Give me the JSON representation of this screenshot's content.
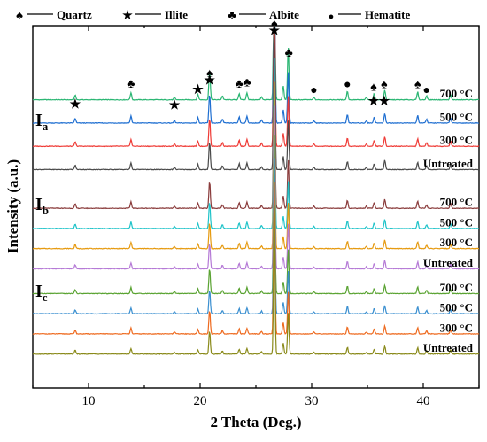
{
  "chart_data": {
    "type": "line",
    "xlabel": "2 Theta (Deg.)",
    "ylabel": "Intensity (a.u.)",
    "xlim": [
      5,
      45
    ],
    "xticks": [
      10,
      20,
      30,
      40
    ],
    "y_ticks_shown": false,
    "legend": {
      "placement": "top",
      "entries": [
        {
          "name": "Quartz",
          "symbol": "♠"
        },
        {
          "name": "Illite",
          "symbol": "★"
        },
        {
          "name": "Albite",
          "symbol": "♣"
        },
        {
          "name": "Hematite",
          "symbol": "●"
        }
      ]
    },
    "groups": [
      {
        "main": "I",
        "sub": "a"
      },
      {
        "main": "I",
        "sub": "b"
      },
      {
        "main": "I",
        "sub": "c"
      }
    ],
    "series": [
      {
        "name": "700 °C",
        "group": 0,
        "color": "#2bb673",
        "offset": 8.2
      },
      {
        "name": "500 °C",
        "group": 0,
        "color": "#1f6fd1",
        "offset": 7.45
      },
      {
        "name": "300 °C",
        "group": 0,
        "color": "#ef3b36",
        "offset": 6.7
      },
      {
        "name": "Untreated",
        "group": 0,
        "color": "#4a4a4a",
        "offset": 5.95
      },
      {
        "name": "700 °C",
        "group": 1,
        "color": "#8a3b3b",
        "offset": 4.7
      },
      {
        "name": "500 °C",
        "group": 1,
        "color": "#1fc3c9",
        "offset": 4.05
      },
      {
        "name": "300 °C",
        "group": 1,
        "color": "#e69a10",
        "offset": 3.4
      },
      {
        "name": "Untreated",
        "group": 1,
        "color": "#b57ad6",
        "offset": 2.75
      },
      {
        "name": "700 °C",
        "group": 2,
        "color": "#5aa332",
        "offset": 1.95
      },
      {
        "name": "500 °C",
        "group": 2,
        "color": "#3a8fd0",
        "offset": 1.3
      },
      {
        "name": "300 °C",
        "group": 2,
        "color": "#ee6a1f",
        "offset": 0.65
      },
      {
        "name": "Untreated",
        "group": 2,
        "color": "#8a8a1a",
        "offset": 0.0
      }
    ],
    "peaks": [
      {
        "x": 8.8,
        "h": 0.12
      },
      {
        "x": 13.8,
        "h": 0.18
      },
      {
        "x": 17.7,
        "h": 0.06
      },
      {
        "x": 19.8,
        "h": 0.14
      },
      {
        "x": 20.85,
        "h": 0.75
      },
      {
        "x": 22.0,
        "h": 0.1
      },
      {
        "x": 23.5,
        "h": 0.16
      },
      {
        "x": 24.2,
        "h": 0.18
      },
      {
        "x": 25.5,
        "h": 0.08
      },
      {
        "x": 26.65,
        "h": 4.8
      },
      {
        "x": 27.45,
        "h": 0.35
      },
      {
        "x": 27.9,
        "h": 1.35
      },
      {
        "x": 30.2,
        "h": 0.06
      },
      {
        "x": 33.2,
        "h": 0.22
      },
      {
        "x": 34.9,
        "h": 0.06
      },
      {
        "x": 35.6,
        "h": 0.16
      },
      {
        "x": 36.55,
        "h": 0.25
      },
      {
        "x": 39.5,
        "h": 0.2
      },
      {
        "x": 40.3,
        "h": 0.1
      },
      {
        "x": 42.45,
        "h": 0.14
      }
    ],
    "annotations": [
      {
        "symbol": "♠",
        "x": 20.85,
        "y": 8.95
      },
      {
        "symbol": "★",
        "x": 20.85,
        "y": 8.72
      },
      {
        "symbol": "♠",
        "x": 26.65,
        "y": 10.55
      },
      {
        "symbol": "★",
        "x": 26.65,
        "y": 10.32
      },
      {
        "symbol": "♣",
        "x": 27.95,
        "y": 9.6
      },
      {
        "symbol": "♣",
        "x": 13.8,
        "y": 8.6
      },
      {
        "symbol": "★",
        "x": 19.8,
        "y": 8.42
      },
      {
        "symbol": "♣",
        "x": 23.5,
        "y": 8.6
      },
      {
        "symbol": "♣",
        "x": 24.2,
        "y": 8.65
      },
      {
        "symbol": "★",
        "x": 8.8,
        "y": 7.95
      },
      {
        "symbol": "★",
        "x": 17.7,
        "y": 7.92
      },
      {
        "symbol": "●",
        "x": 30.2,
        "y": 8.4
      },
      {
        "symbol": "●",
        "x": 33.2,
        "y": 8.58
      },
      {
        "symbol": "♠",
        "x": 35.55,
        "y": 8.5
      },
      {
        "symbol": "★",
        "x": 35.55,
        "y": 8.04
      },
      {
        "symbol": "♠",
        "x": 36.5,
        "y": 8.58
      },
      {
        "symbol": "★",
        "x": 36.5,
        "y": 8.04
      },
      {
        "symbol": "♠",
        "x": 39.5,
        "y": 8.58
      },
      {
        "symbol": "●",
        "x": 40.3,
        "y": 8.4
      }
    ]
  }
}
